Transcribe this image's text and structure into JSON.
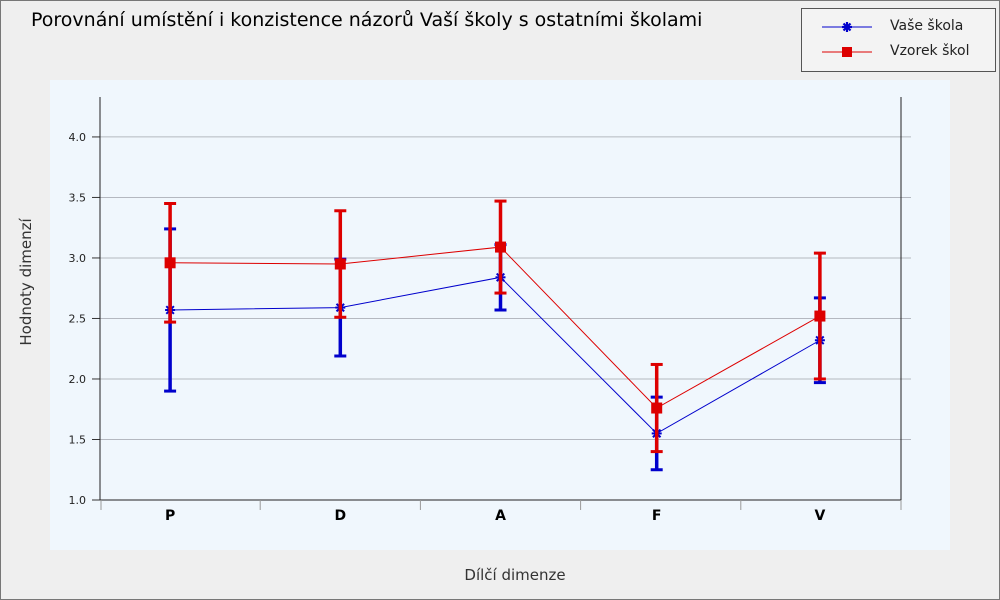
{
  "chart_data": {
    "type": "line",
    "title": "Porovnání umístění i konzistence názorů Vaší školy s ostatními školami",
    "xlabel": "Dílčí dimenze",
    "ylabel": "Hodnoty dimenzí",
    "categories": [
      "P",
      "D",
      "A",
      "F",
      "V"
    ],
    "ylim": [
      1.0,
      4.33
    ],
    "yticks": [
      "1.0",
      "1.5",
      "2.0",
      "2.5",
      "3.0",
      "3.5",
      "4.0"
    ],
    "grid": true,
    "legend_position": "top-right",
    "series": [
      {
        "name": "Vaše škola",
        "color": "#0000cc",
        "marker": "asterisk",
        "values": [
          2.57,
          2.59,
          2.84,
          1.55,
          2.32
        ],
        "error_low": [
          1.9,
          2.19,
          2.57,
          1.25,
          1.97
        ],
        "error_high": [
          3.24,
          2.99,
          3.11,
          1.85,
          2.67
        ]
      },
      {
        "name": "Vzorek škol",
        "color": "#dd0000",
        "marker": "square",
        "values": [
          2.96,
          2.95,
          3.09,
          1.76,
          2.52
        ],
        "error_low": [
          2.47,
          2.51,
          2.71,
          1.4,
          2.0
        ],
        "error_high": [
          3.45,
          3.39,
          3.47,
          2.12,
          3.04
        ]
      }
    ]
  }
}
